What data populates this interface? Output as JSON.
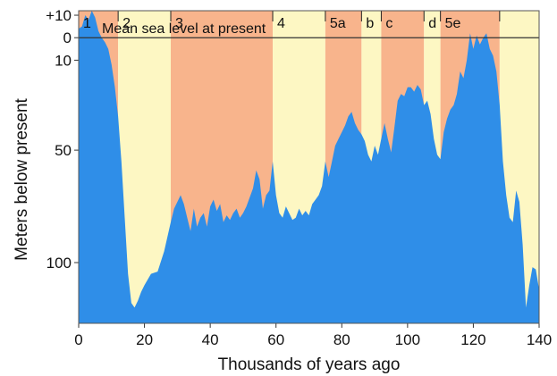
{
  "chart_data": {
    "type": "area",
    "title": "",
    "xlabel": "Thousands of years ago",
    "ylabel": "Meters below present",
    "xlim": [
      0,
      140
    ],
    "ylim": [
      -12,
      127
    ],
    "y_inverted": true,
    "grid": false,
    "x_ticks": [
      0,
      20,
      40,
      60,
      80,
      100,
      120,
      140
    ],
    "y_ticks": [
      {
        "value": -10,
        "label": "+10"
      },
      {
        "value": 0,
        "label": "0"
      },
      {
        "value": 10,
        "label": "10"
      },
      {
        "value": 50,
        "label": "50"
      },
      {
        "value": 100,
        "label": "100"
      }
    ],
    "stages": [
      {
        "label": "1",
        "start": 0,
        "end": 12,
        "color": "#f8b48c"
      },
      {
        "label": "2",
        "start": 12,
        "end": 28,
        "color": "#fdf7c3"
      },
      {
        "label": "3",
        "start": 28,
        "end": 59,
        "color": "#f8b48c"
      },
      {
        "label": "4",
        "start": 59,
        "end": 75,
        "color": "#fdf7c3"
      },
      {
        "label": "5a",
        "start": 75,
        "end": 86,
        "color": "#f8b48c"
      },
      {
        "label": "b",
        "start": 86,
        "end": 92,
        "color": "#fdf7c3"
      },
      {
        "label": "c",
        "start": 92,
        "end": 105,
        "color": "#f8b48c"
      },
      {
        "label": "d",
        "start": 105,
        "end": 110,
        "color": "#fdf7c3"
      },
      {
        "label": "5e",
        "start": 110,
        "end": 128,
        "color": "#f8b48c"
      },
      {
        "label": "",
        "start": 128,
        "end": 140,
        "color": "#fdf7c3"
      }
    ],
    "reference_line": {
      "label": "Mean sea level at present",
      "value": 0
    },
    "series": [
      {
        "color": "#2f8ee8",
        "x": [
          0,
          1,
          2,
          3,
          4,
          5,
          6,
          7,
          8,
          9,
          10,
          11,
          12,
          13,
          14,
          15,
          16,
          17,
          18,
          19,
          20,
          22,
          24,
          26,
          28,
          29,
          30,
          31,
          32,
          33,
          34,
          35,
          36,
          37,
          38,
          39,
          40,
          41,
          42,
          43,
          44,
          45,
          46,
          47,
          48,
          49,
          50,
          51,
          52,
          53,
          54,
          55,
          56,
          57,
          58,
          59,
          60,
          61,
          62,
          63,
          64,
          65,
          66,
          67,
          68,
          69,
          70,
          71,
          72,
          73,
          74,
          75,
          76,
          77,
          78,
          79,
          80,
          81,
          82,
          83,
          84,
          85,
          86,
          87,
          88,
          89,
          90,
          91,
          92,
          93,
          94,
          95,
          96,
          97,
          98,
          99,
          100,
          101,
          102,
          103,
          104,
          105,
          106,
          107,
          108,
          109,
          110,
          111,
          112,
          113,
          114,
          115,
          116,
          117,
          118,
          119,
          120,
          121,
          122,
          123,
          124,
          125,
          126,
          127,
          128,
          129,
          130,
          131,
          132,
          133,
          134,
          135,
          136,
          137,
          138,
          139,
          140
        ],
        "y": [
          -4,
          -5,
          -10,
          -8,
          -12,
          -9,
          -3,
          0,
          2,
          5,
          12,
          22,
          35,
          55,
          80,
          105,
          118,
          120,
          117,
          113,
          110,
          105,
          104,
          95,
          82,
          76,
          73,
          70,
          74,
          80,
          86,
          76,
          84,
          80,
          78,
          84,
          75,
          72,
          77,
          74,
          82,
          79,
          81,
          78,
          76,
          80,
          78,
          75,
          71,
          67,
          59,
          63,
          76,
          70,
          68,
          55,
          70,
          78,
          80,
          75,
          78,
          81,
          80,
          76,
          79,
          77,
          79,
          74,
          72,
          70,
          66,
          55,
          62,
          55,
          48,
          45,
          42,
          39,
          35,
          33,
          38,
          41,
          43,
          46,
          52,
          55,
          48,
          52,
          45,
          38,
          45,
          51,
          40,
          28,
          25,
          26,
          22,
          22,
          24,
          21,
          23,
          30,
          28,
          34,
          45,
          52,
          54,
          42,
          36,
          32,
          30,
          25,
          15,
          18,
          10,
          -2,
          5,
          -1,
          3,
          0,
          -2,
          5,
          8,
          15,
          30,
          55,
          70,
          80,
          82,
          68,
          73,
          92,
          120,
          110,
          102,
          103,
          112
        ]
      }
    ]
  }
}
